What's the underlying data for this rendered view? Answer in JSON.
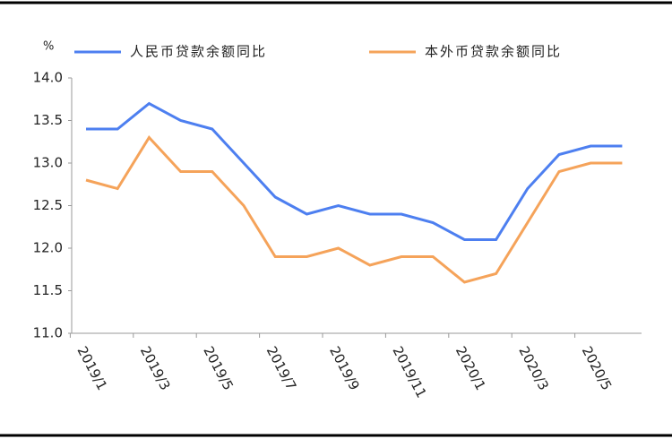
{
  "chart_data": {
    "type": "line",
    "unit_label": "%",
    "categories": [
      "2019/1",
      null,
      "2019/3",
      null,
      "2019/5",
      null,
      "2019/7",
      null,
      "2019/9",
      null,
      "2019/11",
      null,
      "2020/1",
      null,
      "2020/3",
      null,
      "2020/5",
      null
    ],
    "series": [
      {
        "name": "人民币贷款余额同比",
        "color": "#4d7ff0",
        "values": [
          13.4,
          13.4,
          13.7,
          13.5,
          13.4,
          13.0,
          12.6,
          12.4,
          12.5,
          12.4,
          12.4,
          12.3,
          12.1,
          12.1,
          12.7,
          13.1,
          13.2,
          13.2
        ]
      },
      {
        "name": "本外币贷款余额同比",
        "color": "#f5a35a",
        "values": [
          12.8,
          12.7,
          13.3,
          12.9,
          12.9,
          12.5,
          11.9,
          11.9,
          12.0,
          11.8,
          11.9,
          11.9,
          11.6,
          11.7,
          12.3,
          12.9,
          13.0,
          13.0
        ]
      }
    ],
    "ylim": [
      11.0,
      14.0
    ],
    "yticks": [
      {
        "value": 11.0,
        "label": "11.0"
      },
      11.5,
      {
        "value": 12.0,
        "label": "12.0"
      },
      12.5,
      {
        "value": 13.0,
        "label": "13.0"
      },
      13.5,
      {
        "value": 14.0,
        "label": "14.0"
      }
    ],
    "grid": false,
    "legend": "top"
  }
}
